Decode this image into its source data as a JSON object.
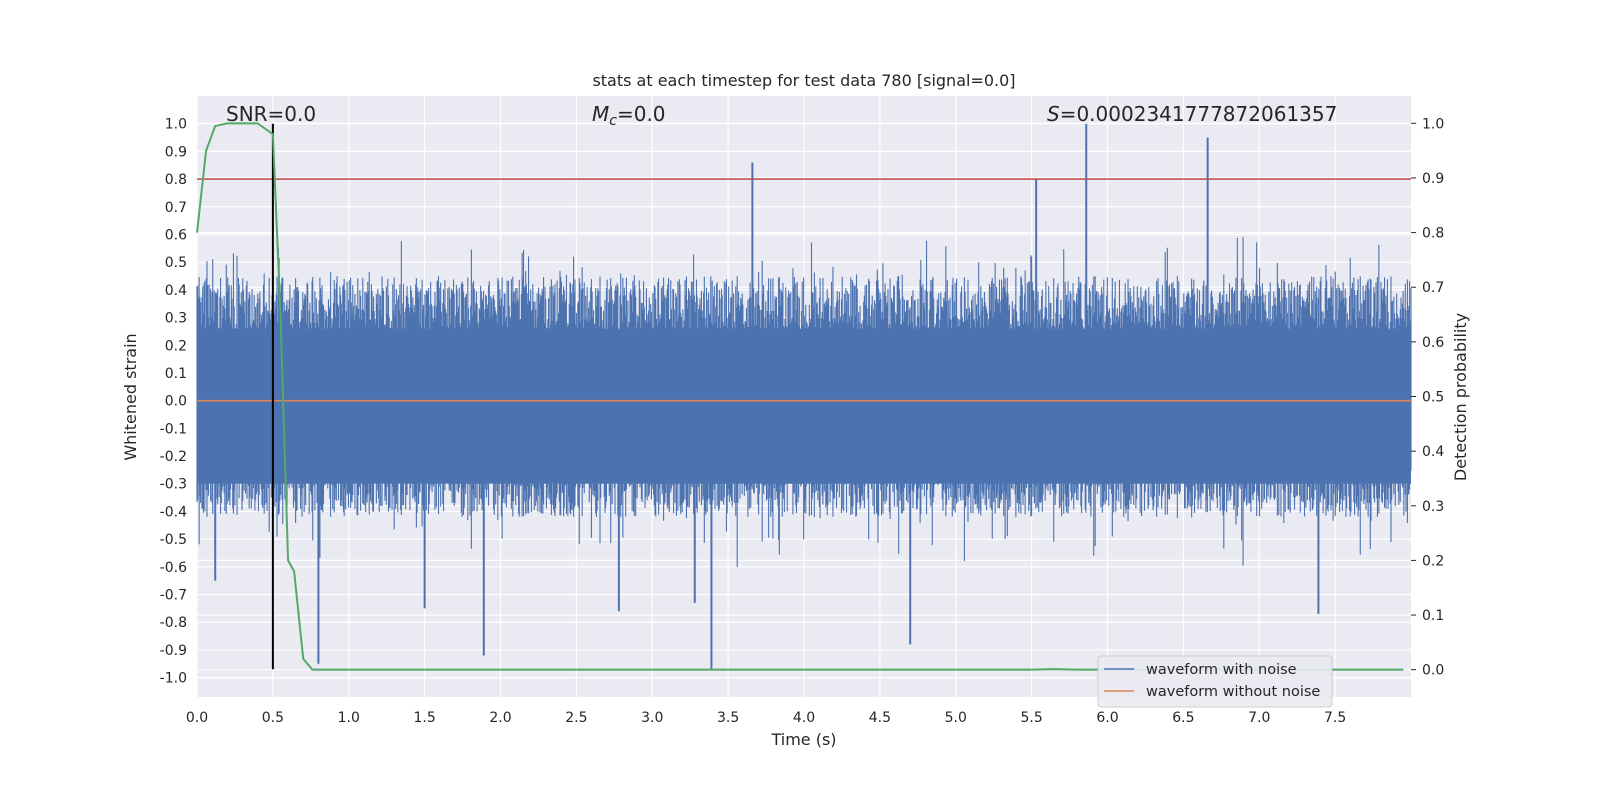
{
  "chart_data": {
    "type": "line",
    "title": "stats at each timestep for test data 780 [signal=0.0]",
    "xlabel": "Time (s)",
    "ylabel": "Whitened strain",
    "y2label": "Detection probability",
    "xlim": [
      0.0,
      8.0
    ],
    "ylim": [
      -1.07,
      1.1
    ],
    "y2lim": [
      -0.05,
      1.05
    ],
    "xticks": [
      "0.0",
      "0.5",
      "1.0",
      "1.5",
      "2.0",
      "2.5",
      "3.0",
      "3.5",
      "4.0",
      "4.5",
      "5.0",
      "5.5",
      "6.0",
      "6.5",
      "7.0",
      "7.5"
    ],
    "yticks": [
      "1.0",
      "0.9",
      "0.8",
      "0.7",
      "0.6",
      "0.5",
      "0.4",
      "0.3",
      "0.2",
      "0.1",
      "0.0",
      "-0.1",
      "-0.2",
      "-0.3",
      "-0.4",
      "-0.5",
      "-0.6",
      "-0.7",
      "-0.8",
      "-0.9",
      "-1.0"
    ],
    "y2ticks": [
      "1.0",
      "0.9",
      "0.8",
      "0.7",
      "0.6",
      "0.5",
      "0.4",
      "0.3",
      "0.2",
      "0.1",
      "0.0"
    ],
    "annotations": {
      "snr": "SNR=0.0",
      "mc_symbol": "M",
      "mc_sub": "c",
      "mc_value": "=0.0",
      "s_symbol": "S",
      "s_value": "=0.0002341777872061357"
    },
    "threshold": {
      "y": 0.8,
      "color": "#c44e52"
    },
    "vertical_marker": {
      "x": 0.5,
      "y_range": [
        -0.97,
        1.0
      ],
      "color": "#000000"
    },
    "series": [
      {
        "name": "waveform with noise",
        "color": "#4c72b0",
        "kind": "noise",
        "span": [
          0.0,
          8.0
        ],
        "typical_positive_peak": 0.45,
        "typical_negative_peak": -0.42,
        "spikes": [
          {
            "x": 3.66,
            "y": 0.86
          },
          {
            "x": 5.86,
            "y": 1.0
          },
          {
            "x": 6.66,
            "y": 0.95
          },
          {
            "x": 5.53,
            "y": 0.8
          },
          {
            "x": 3.39,
            "y": -0.97
          },
          {
            "x": 1.89,
            "y": -0.92
          },
          {
            "x": 0.8,
            "y": -0.95
          },
          {
            "x": 4.7,
            "y": -0.88
          },
          {
            "x": 0.12,
            "y": -0.65
          },
          {
            "x": 1.5,
            "y": -0.75
          },
          {
            "x": 2.78,
            "y": -0.76
          },
          {
            "x": 3.28,
            "y": -0.73
          },
          {
            "x": 7.39,
            "y": -0.77
          }
        ]
      },
      {
        "name": "waveform without noise",
        "color": "#dd8452",
        "kind": "constant",
        "y": 0.0
      },
      {
        "name": "detection probability",
        "color": "#55a868",
        "axis": "right",
        "x": [
          0.0,
          0.06,
          0.12,
          0.2,
          0.3,
          0.4,
          0.45,
          0.5,
          0.55,
          0.6,
          0.64,
          0.7,
          0.76,
          0.85,
          1.0,
          2.0,
          3.0,
          4.0,
          5.0,
          5.5,
          5.65,
          5.8,
          6.0,
          7.0,
          7.95
        ],
        "y": [
          0.8,
          0.95,
          0.995,
          1.0,
          1.0,
          1.0,
          0.99,
          0.98,
          0.65,
          0.2,
          0.18,
          0.02,
          0.0,
          0.0,
          0.0,
          0.0,
          0.0,
          0.0,
          0.0,
          0.0,
          0.001,
          0.0,
          0.0,
          0.0,
          0.0
        ]
      }
    ],
    "legend": {
      "placement": "lower-right",
      "entries": [
        "waveform with noise",
        "waveform without noise"
      ]
    },
    "grid": true,
    "background": "#eaeaf2"
  }
}
